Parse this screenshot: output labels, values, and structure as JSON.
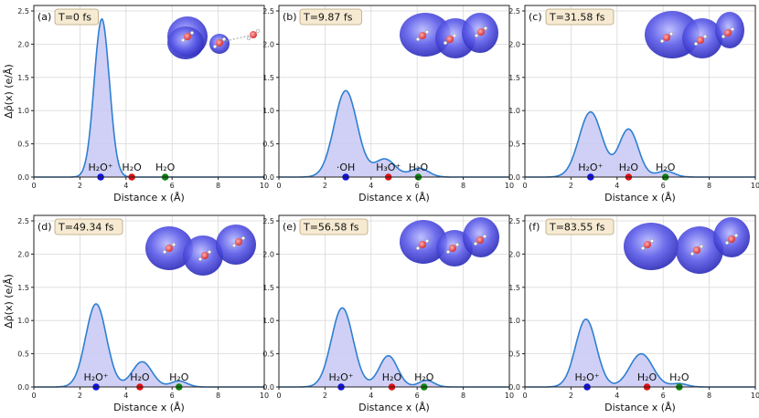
{
  "figure": {
    "ylabel": "Δρ̄(x) (e/Å)",
    "xlabel": "Distance x (Å)"
  },
  "style": {
    "curve_color": "#2f7fd0",
    "fill_color": "#c8c8f4",
    "grid_color": "#d9d9d9",
    "box_fill": "#f6ead2",
    "box_stroke": "#b8a47a",
    "marker_colors": {
      "blue": "#1010e0",
      "red": "#e01010",
      "green": "#108010"
    },
    "cloud_color": "#4848d8",
    "oxygen_color": "#d83030"
  },
  "chart_data": [
    {
      "type": "area",
      "panel": "(a)",
      "time_label": "T=0 fs",
      "x_range": [
        0,
        10
      ],
      "y_range": [
        0,
        2.5
      ],
      "x_ticks": [
        "0",
        "2",
        "4",
        "6",
        "8",
        "10"
      ],
      "y_ticks": [
        "0.0",
        "0.5",
        "1.0",
        "1.5",
        "2.0",
        "2.5"
      ],
      "peaks": [
        {
          "center": 2.95,
          "height": 2.38,
          "width": 0.33
        }
      ],
      "markers": [
        {
          "x": 2.9,
          "color": "blue",
          "label": "H₂O⁺"
        },
        {
          "x": 4.25,
          "color": "red",
          "label": "H₂O"
        },
        {
          "x": 5.7,
          "color": "green",
          "label": "H₂O"
        }
      ]
    },
    {
      "type": "area",
      "panel": "(b)",
      "time_label": "T=9.87 fs",
      "x_range": [
        0,
        10
      ],
      "y_range": [
        0,
        2.5
      ],
      "x_ticks": [
        "0",
        "2",
        "4",
        "6",
        "8",
        "10"
      ],
      "y_ticks": [
        "0.0",
        "0.5",
        "1.0",
        "1.5",
        "2.0",
        "2.5"
      ],
      "peaks": [
        {
          "center": 2.9,
          "height": 1.3,
          "width": 0.5
        },
        {
          "center": 4.6,
          "height": 0.27,
          "width": 0.45
        },
        {
          "center": 6.1,
          "height": 0.13,
          "width": 0.4
        }
      ],
      "markers": [
        {
          "x": 2.9,
          "color": "blue",
          "label": "·OH"
        },
        {
          "x": 4.75,
          "color": "red",
          "label": "H₃O⁺"
        },
        {
          "x": 6.05,
          "color": "green",
          "label": "H₂O"
        }
      ]
    },
    {
      "type": "area",
      "panel": "(c)",
      "time_label": "T=31.58 fs",
      "x_range": [
        0,
        10
      ],
      "y_range": [
        0,
        2.5
      ],
      "x_ticks": [
        "0",
        "2",
        "4",
        "6",
        "8",
        "10"
      ],
      "y_ticks": [
        "0.0",
        "0.5",
        "1.0",
        "1.5",
        "2.0",
        "2.5"
      ],
      "peaks": [
        {
          "center": 2.85,
          "height": 0.98,
          "width": 0.5
        },
        {
          "center": 4.5,
          "height": 0.72,
          "width": 0.42
        },
        {
          "center": 6.1,
          "height": 0.09,
          "width": 0.38
        }
      ],
      "markers": [
        {
          "x": 2.85,
          "color": "blue",
          "label": "H₂O⁺"
        },
        {
          "x": 4.5,
          "color": "red",
          "label": "H₂O"
        },
        {
          "x": 6.1,
          "color": "green",
          "label": "H₂O"
        }
      ]
    },
    {
      "type": "area",
      "panel": "(d)",
      "time_label": "T=49.34 fs",
      "x_range": [
        0,
        10
      ],
      "y_range": [
        0,
        2.5
      ],
      "x_ticks": [
        "0",
        "2",
        "4",
        "6",
        "8",
        "10"
      ],
      "y_ticks": [
        "0.0",
        "0.5",
        "1.0",
        "1.5",
        "2.0",
        "2.5"
      ],
      "peaks": [
        {
          "center": 2.7,
          "height": 1.25,
          "width": 0.45
        },
        {
          "center": 4.7,
          "height": 0.38,
          "width": 0.43
        },
        {
          "center": 6.3,
          "height": 0.09,
          "width": 0.35
        }
      ],
      "markers": [
        {
          "x": 2.7,
          "color": "blue",
          "label": "H₂O⁺"
        },
        {
          "x": 4.6,
          "color": "red",
          "label": "H₂O"
        },
        {
          "x": 6.3,
          "color": "green",
          "label": "H₂O"
        }
      ]
    },
    {
      "type": "area",
      "panel": "(e)",
      "time_label": "T=56.58 fs",
      "x_range": [
        0,
        10
      ],
      "y_range": [
        0,
        2.5
      ],
      "x_ticks": [
        "0",
        "2",
        "4",
        "6",
        "8",
        "10"
      ],
      "y_ticks": [
        "0.0",
        "0.5",
        "1.0",
        "1.5",
        "2.0",
        "2.5"
      ],
      "peaks": [
        {
          "center": 2.75,
          "height": 1.19,
          "width": 0.47
        },
        {
          "center": 4.75,
          "height": 0.47,
          "width": 0.4
        },
        {
          "center": 6.4,
          "height": 0.1,
          "width": 0.33
        }
      ],
      "markers": [
        {
          "x": 2.7,
          "color": "blue",
          "label": "H₂O⁺"
        },
        {
          "x": 4.9,
          "color": "red",
          "label": "H₂O"
        },
        {
          "x": 6.3,
          "color": "green",
          "label": "H₂O"
        }
      ]
    },
    {
      "type": "area",
      "panel": "(f)",
      "time_label": "T=83.55 fs",
      "x_range": [
        0,
        10
      ],
      "y_range": [
        0,
        2.5
      ],
      "x_ticks": [
        "0",
        "2",
        "4",
        "6",
        "8",
        "10"
      ],
      "y_ticks": [
        "0.0",
        "0.5",
        "1.0",
        "1.5",
        "2.0",
        "2.5"
      ],
      "peaks": [
        {
          "center": 2.65,
          "height": 1.02,
          "width": 0.45
        },
        {
          "center": 5.05,
          "height": 0.5,
          "width": 0.5
        },
        {
          "center": 6.7,
          "height": 0.05,
          "width": 0.35
        }
      ],
      "markers": [
        {
          "x": 2.7,
          "color": "blue",
          "label": "H₂O⁺"
        },
        {
          "x": 5.3,
          "color": "red",
          "label": "H₂O"
        },
        {
          "x": 6.7,
          "color": "green",
          "label": "H₂O"
        }
      ]
    }
  ]
}
